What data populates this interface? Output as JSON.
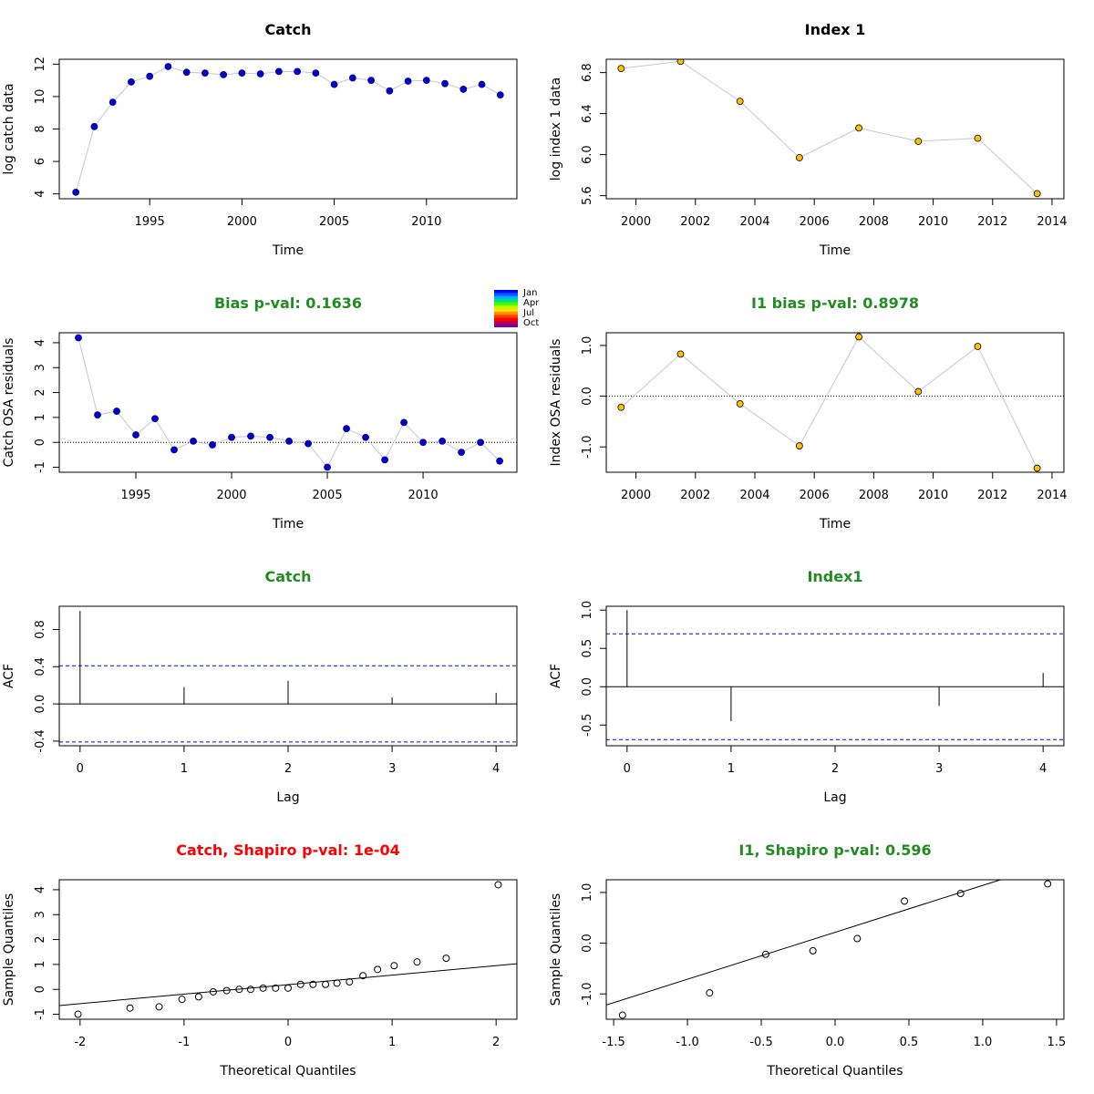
{
  "colors": {
    "title_ok": "#228B22",
    "title_bad": "#FF0000",
    "catch_point": "#0000CD",
    "index_point": "#FFC000",
    "ci_line": "#0000FF",
    "path_line": "#C8C8C8"
  },
  "legend": {
    "labels": [
      "Jan",
      "Apr",
      "Jul",
      "Oct"
    ],
    "placement": "top-center"
  },
  "chart_data": [
    {
      "id": "catch_data",
      "type": "scatter",
      "title": "Catch",
      "title_color": "black",
      "xlabel": "Time",
      "ylabel": "log catch data",
      "xlim": [
        1990.1,
        2014.9
      ],
      "ylim": [
        3.7,
        12.3
      ],
      "xticks": [
        1995,
        2000,
        2005,
        2010
      ],
      "yticks": [
        4,
        6,
        8,
        10,
        12
      ],
      "x": [
        1991,
        1992,
        1993,
        1994,
        1995,
        1996,
        1997,
        1998,
        1999,
        2000,
        2001,
        2002,
        2003,
        2004,
        2005,
        2006,
        2007,
        2008,
        2009,
        2010,
        2011,
        2012,
        2013,
        2014
      ],
      "y": [
        4.1,
        8.15,
        9.65,
        10.9,
        11.25,
        11.85,
        11.5,
        11.45,
        11.35,
        11.45,
        11.4,
        11.55,
        11.55,
        11.45,
        10.75,
        11.15,
        11.0,
        10.35,
        10.95,
        11.0,
        10.8,
        10.45,
        10.75,
        10.1
      ],
      "path": true,
      "point_color": "#0000CD"
    },
    {
      "id": "index_data",
      "type": "scatter",
      "title": "Index 1",
      "title_color": "black",
      "xlabel": "Time",
      "ylabel": "log index 1 data",
      "xlim": [
        1999.0,
        2014.4
      ],
      "ylim": [
        5.57,
        6.93
      ],
      "xticks": [
        2000,
        2002,
        2004,
        2006,
        2008,
        2010,
        2012,
        2014
      ],
      "yticks": [
        "5.6",
        "6.0",
        "6.4",
        "6.8"
      ],
      "x": [
        1999.5,
        2001.5,
        2003.5,
        2005.5,
        2007.5,
        2009.5,
        2011.5,
        2013.5
      ],
      "y": [
        6.84,
        6.91,
        6.52,
        5.97,
        6.26,
        6.13,
        6.16,
        5.62
      ],
      "path": true,
      "point_color": "#FFC000"
    },
    {
      "id": "catch_resid",
      "type": "scatter",
      "title": "Bias p-val: 0.1636",
      "title_color": "#228B22",
      "xlabel": "Time",
      "ylabel": "Catch OSA residuals",
      "xlim": [
        1991.0,
        2014.9
      ],
      "ylim": [
        -1.2,
        4.4
      ],
      "xticks": [
        1995,
        2000,
        2005,
        2010
      ],
      "yticks": [
        -1,
        0,
        1,
        2,
        3,
        4
      ],
      "x": [
        1992,
        1993,
        1994,
        1995,
        1996,
        1997,
        1998,
        1999,
        2000,
        2001,
        2002,
        2003,
        2004,
        2005,
        2006,
        2007,
        2008,
        2009,
        2010,
        2011,
        2012,
        2013,
        2014
      ],
      "y": [
        4.2,
        1.1,
        1.25,
        0.3,
        0.95,
        -0.3,
        0.05,
        -0.1,
        0.2,
        0.25,
        0.2,
        0.05,
        -0.05,
        -1.0,
        0.55,
        0.2,
        -0.7,
        0.8,
        0.0,
        0.05,
        -0.4,
        0.0,
        -0.75
      ],
      "path": true,
      "zero_line": true,
      "point_color": "#0000CD"
    },
    {
      "id": "index_resid",
      "type": "scatter",
      "title": "I1 bias p-val: 0.8978",
      "title_color": "#228B22",
      "xlabel": "Time",
      "ylabel": "Index OSA residuals",
      "xlim": [
        1999.0,
        2014.4
      ],
      "ylim": [
        -1.5,
        1.25
      ],
      "xticks": [
        2000,
        2002,
        2004,
        2006,
        2008,
        2010,
        2012,
        2014
      ],
      "yticks": [
        "-1.0",
        "0.0",
        "1.0"
      ],
      "x": [
        1999.5,
        2001.5,
        2003.5,
        2005.5,
        2007.5,
        2009.5,
        2011.5,
        2013.5
      ],
      "y": [
        -0.22,
        0.83,
        -0.15,
        -0.98,
        1.17,
        0.09,
        0.98,
        -1.42
      ],
      "path": true,
      "zero_line": true,
      "point_color": "#FFC000"
    },
    {
      "id": "catch_acf",
      "type": "acf",
      "title": "Catch",
      "title_color": "#228B22",
      "xlabel": "Lag",
      "ylabel": "ACF",
      "xlim": [
        -0.2,
        4.2
      ],
      "ylim": [
        -0.45,
        1.05
      ],
      "xticks": [
        0,
        1,
        2,
        3,
        4
      ],
      "yticks": [
        "-0.4",
        "0.0",
        "0.4",
        "0.8"
      ],
      "lags": [
        0,
        1,
        2,
        3,
        4
      ],
      "acf": [
        1.0,
        0.18,
        0.25,
        0.07,
        0.12
      ],
      "ci": 0.41
    },
    {
      "id": "index_acf",
      "type": "acf",
      "title": "Index1",
      "title_color": "#228B22",
      "xlabel": "Lag",
      "ylabel": "ACF",
      "xlim": [
        -0.2,
        4.2
      ],
      "ylim": [
        -0.77,
        1.05
      ],
      "xticks": [
        0,
        1,
        2,
        3,
        4
      ],
      "yticks": [
        "-0.5",
        "0.0",
        "0.5",
        "1.0"
      ],
      "lags": [
        0,
        1,
        2,
        3,
        4
      ],
      "acf": [
        1.0,
        -0.45,
        0.0,
        -0.25,
        0.18
      ],
      "ci": 0.69
    },
    {
      "id": "catch_qq",
      "type": "qq",
      "title": "Catch, Shapiro p-val: 1e-04",
      "title_color": "#FF0000",
      "xlabel": "Theoretical Quantiles",
      "ylabel": "Sample Quantiles",
      "xlim": [
        -2.2,
        2.2
      ],
      "ylim": [
        -1.2,
        4.4
      ],
      "xticks": [
        -2,
        -1,
        0,
        1,
        2
      ],
      "yticks": [
        -1,
        0,
        1,
        2,
        3,
        4
      ],
      "x": [
        -2.02,
        -1.52,
        -1.24,
        -1.02,
        -0.86,
        -0.72,
        -0.59,
        -0.47,
        -0.36,
        -0.24,
        -0.12,
        0.0,
        0.12,
        0.24,
        0.36,
        0.47,
        0.59,
        0.72,
        0.86,
        1.02,
        1.24,
        1.52,
        2.02
      ],
      "y": [
        -1.0,
        -0.75,
        -0.7,
        -0.4,
        -0.3,
        -0.1,
        -0.05,
        0.0,
        0.0,
        0.05,
        0.05,
        0.05,
        0.2,
        0.2,
        0.2,
        0.25,
        0.3,
        0.55,
        0.8,
        0.95,
        1.1,
        1.25,
        4.2
      ],
      "qqline": [
        [
          -2.2,
          -0.65
        ],
        [
          2.2,
          1.03
        ]
      ]
    },
    {
      "id": "index_qq",
      "type": "qq",
      "title": "I1, Shapiro p-val: 0.596",
      "title_color": "#228B22",
      "xlabel": "Theoretical Quantiles",
      "ylabel": "Sample Quantiles",
      "xlim": [
        -1.55,
        1.55
      ],
      "ylim": [
        -1.5,
        1.25
      ],
      "xticks": [
        "-1.5",
        "-1.0",
        "-0.5",
        "0.0",
        "0.5",
        "1.0",
        "1.5"
      ],
      "yticks": [
        "-1.0",
        "0.0",
        "1.0"
      ],
      "x": [
        -1.44,
        -0.85,
        -0.47,
        -0.15,
        0.15,
        0.47,
        0.85,
        1.44
      ],
      "y": [
        -1.42,
        -0.98,
        -0.22,
        -0.15,
        0.09,
        0.83,
        0.98,
        1.17
      ],
      "qqline": [
        [
          -1.55,
          -1.22
        ],
        [
          1.12,
          1.25
        ]
      ]
    }
  ]
}
